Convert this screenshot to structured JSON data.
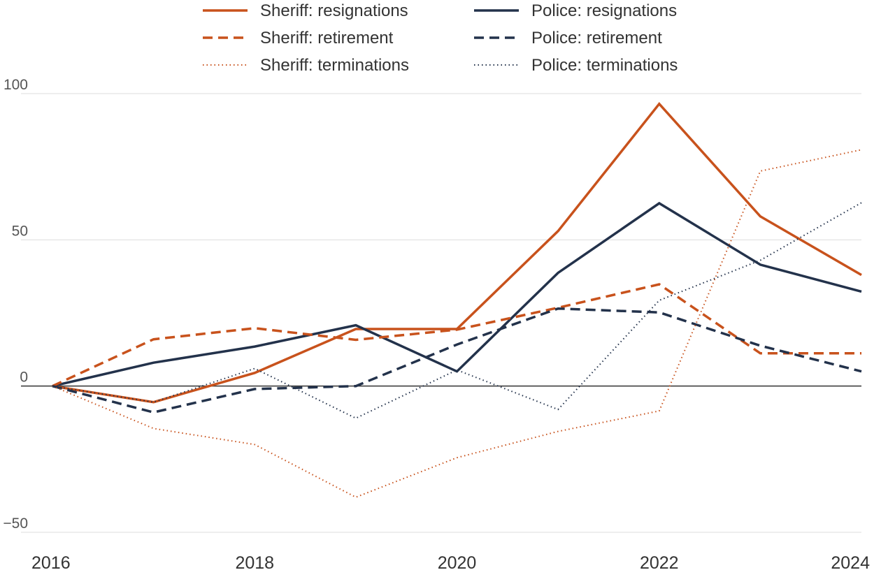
{
  "chart_data": {
    "type": "line",
    "x": [
      2016,
      2017,
      2018,
      2019,
      2020,
      2021,
      2022,
      2023,
      2024
    ],
    "x_tick_labels": [
      "2016",
      "2018",
      "2020",
      "2022",
      "2024"
    ],
    "y_tick_labels": [
      "100",
      "50",
      "0",
      "−50"
    ],
    "ylim": [
      -50,
      100
    ],
    "grid": true,
    "legend_position": "top",
    "series": [
      {
        "name": "Sheriff: resignations",
        "color": "#c8521c",
        "style": "solid",
        "values": [
          0,
          -5.5,
          4.5,
          19.5,
          19.5,
          53,
          96.5,
          58,
          38
        ]
      },
      {
        "name": "Police: resignations",
        "color": "#23324b",
        "style": "solid",
        "values": [
          0,
          8,
          13.5,
          20.8,
          5,
          38.7,
          62.5,
          41.5,
          32.3
        ]
      },
      {
        "name": "Sheriff: retirement",
        "color": "#c8521c",
        "style": "dashed",
        "values": [
          0,
          16,
          19.8,
          15.8,
          19.3,
          26.8,
          34.8,
          11.2,
          11.2
        ]
      },
      {
        "name": "Police: retirement",
        "color": "#23324b",
        "style": "dashed",
        "values": [
          0,
          -9,
          -1,
          0,
          14.2,
          26.5,
          25.2,
          13.8,
          5
        ]
      },
      {
        "name": "Sheriff: terminations",
        "color": "#c8521c",
        "style": "dotted",
        "values": [
          0,
          -14.5,
          -20,
          -38,
          -24.5,
          -15.5,
          -8.5,
          73.5,
          80.8
        ]
      },
      {
        "name": "Police: terminations",
        "color": "#23324b",
        "style": "dotted",
        "values": [
          0,
          -5.5,
          6,
          -11,
          5.5,
          -8,
          29.3,
          43,
          62.7
        ]
      }
    ]
  }
}
